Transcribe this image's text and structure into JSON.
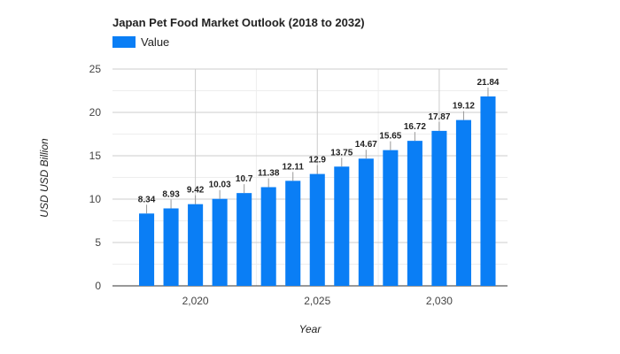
{
  "chart_data": {
    "type": "bar",
    "title": "Japan Pet Food Market Outlook (2018 to 2032)",
    "xlabel": "Year",
    "ylabel": "USD USD Billion",
    "legend": {
      "position": "top-left",
      "entries": [
        "Value"
      ]
    },
    "categories": [
      2018,
      2019,
      2020,
      2021,
      2022,
      2023,
      2024,
      2025,
      2026,
      2027,
      2028,
      2029,
      2030,
      2031,
      2032
    ],
    "series": [
      {
        "name": "Value",
        "color": "#0a7ef5",
        "values": [
          8.34,
          8.93,
          9.42,
          10.03,
          10.7,
          11.38,
          12.11,
          12.9,
          13.75,
          14.67,
          15.65,
          16.72,
          17.87,
          19.12,
          21.84
        ]
      }
    ],
    "data_labels": [
      "8.34",
      "8.93",
      "9.42",
      "10.03",
      "10.7",
      "11.38",
      "12.11",
      "12.9",
      "13.75",
      "14.67",
      "15.65",
      "16.72",
      "17.87",
      "19.12",
      "21.84"
    ],
    "x_ticks": [
      {
        "value": 2020,
        "label": "2,020"
      },
      {
        "value": 2025,
        "label": "2,025"
      },
      {
        "value": 2030,
        "label": "2,030"
      }
    ],
    "y_ticks": [
      {
        "value": 0,
        "label": "0"
      },
      {
        "value": 5,
        "label": "5"
      },
      {
        "value": 10,
        "label": "10"
      },
      {
        "value": 15,
        "label": "15"
      },
      {
        "value": 20,
        "label": "20"
      },
      {
        "value": 25,
        "label": "25"
      }
    ],
    "ylim": [
      0,
      25
    ],
    "xlim": [
      2016.6,
      2032.8
    ],
    "grid": true
  }
}
